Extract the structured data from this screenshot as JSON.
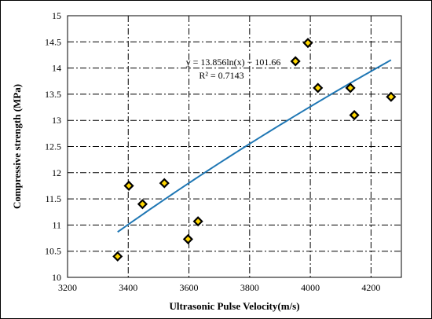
{
  "chart_data": {
    "type": "scatter",
    "title": "",
    "xlabel": "Ultrasonic Pulse Velocity(m/s)",
    "ylabel": "Compressive strength (MPa)",
    "xlim": [
      3200,
      4300
    ],
    "ylim": [
      10,
      15
    ],
    "x_ticks": [
      3200,
      3400,
      3600,
      3800,
      4000,
      4200
    ],
    "y_ticks": [
      10,
      10.5,
      11,
      11.5,
      12,
      12.5,
      13,
      13.5,
      14,
      14.5,
      15
    ],
    "x_tick_labels": [
      "3200",
      "3400",
      "3600",
      "3800",
      "4000",
      "4200"
    ],
    "y_tick_labels": [
      "10",
      "10.5",
      "11",
      "11.5",
      "12",
      "12.5",
      "13",
      "13.5",
      "14",
      "14.5",
      "15"
    ],
    "grid": true,
    "grid_style": "dash-dot",
    "series": [
      {
        "marker": "diamond",
        "fill_color": "#FFD700",
        "edge_color": "#000000",
        "x": [
          3365,
          3402,
          3447,
          3519,
          3597,
          3630,
          3951,
          3992,
          4025,
          4132,
          4145,
          4266
        ],
        "y": [
          10.4,
          11.75,
          11.4,
          11.8,
          10.73,
          11.07,
          14.13,
          14.48,
          13.62,
          13.62,
          13.1,
          13.45
        ]
      }
    ],
    "trendline": {
      "type": "logarithmic",
      "a": 13.856,
      "b": -101.66,
      "x_range": [
        3365,
        4266
      ],
      "color": "#1F77B4"
    },
    "annotations": [
      "y = 13.856ln(x) − 101.66",
      "R² = 0.7143"
    ]
  }
}
